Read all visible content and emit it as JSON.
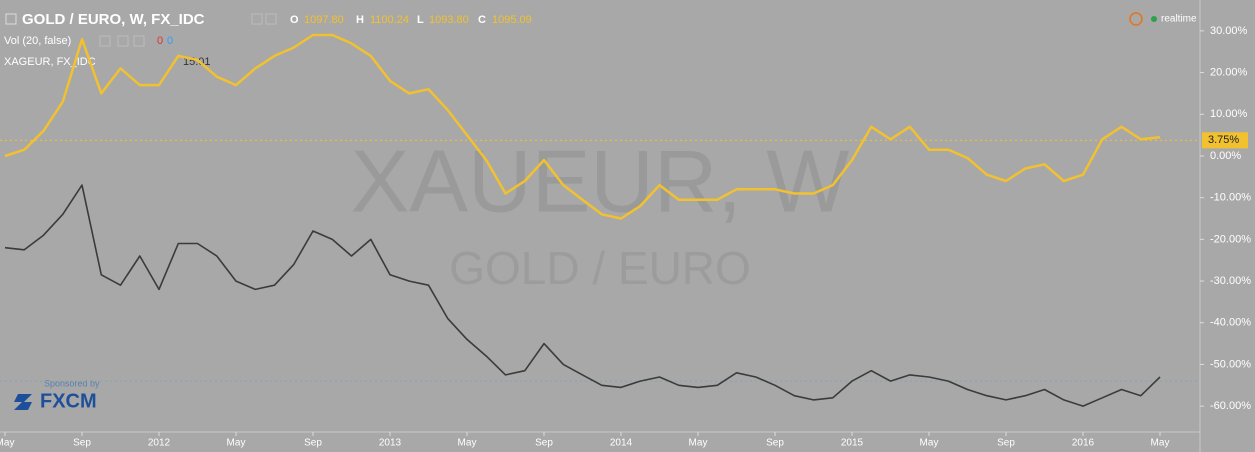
{
  "chart_data": {
    "type": "line",
    "watermark": "XAUEUR, W",
    "watermark_subtitle": "GOLD / EURO",
    "ohlc": {
      "o_label": "O",
      "o": "1097.80",
      "h_label": "H",
      "h": "1100.24",
      "l_label": "L",
      "l": "1093.80",
      "c_label": "C",
      "c": "1095.09"
    },
    "volume": {
      "label": "Vol (20, false)",
      "a": "0",
      "b": "0"
    },
    "compare_value": "15.01",
    "status": "realtime",
    "sponsor": {
      "label": "Sponsored by",
      "name": "FXCM"
    },
    "categories": [
      "May",
      null,
      null,
      null,
      "Sep",
      null,
      null,
      null,
      "2012",
      null,
      null,
      null,
      "May",
      null,
      null,
      null,
      "Sep",
      null,
      null,
      null,
      "2013",
      null,
      null,
      null,
      "May",
      null,
      null,
      null,
      "Sep",
      null,
      null,
      null,
      "2014",
      null,
      null,
      null,
      "May",
      null,
      null,
      null,
      "Sep",
      null,
      null,
      null,
      "2015",
      null,
      null,
      null,
      "May",
      null,
      null,
      null,
      "Sep",
      null,
      null,
      null,
      "2016",
      null,
      null,
      null,
      "May"
    ],
    "series": [
      {
        "name": "GOLD / EURO, W, FX_IDC",
        "color": "#f2c130",
        "values": [
          0,
          1.5,
          6,
          13,
          28,
          15,
          21,
          17,
          17,
          24,
          23,
          19,
          17,
          21,
          24,
          26,
          29,
          29,
          27,
          24,
          18,
          15,
          16,
          11,
          5,
          -1,
          -9,
          -6,
          -1,
          -7,
          -10.5,
          -14,
          -15,
          -12,
          -7,
          -10.5,
          -10.5,
          -10.5,
          -8,
          -8,
          -8,
          -9,
          -9,
          -7,
          -1,
          7,
          4,
          7,
          1.5,
          1.5,
          -0.5,
          -4.5,
          -6,
          -3,
          -2,
          -6,
          -4.5,
          4,
          7,
          4,
          4.5
        ]
      },
      {
        "name": "XAGEUR, FX_IDC",
        "color": "#3b3b3b",
        "values": [
          -22,
          -22.5,
          -19,
          -14,
          -7,
          -28.5,
          -31,
          -24,
          -32,
          -21,
          -21,
          -24,
          -30,
          -32,
          -31,
          -26,
          -18,
          -20,
          -24,
          -20,
          -28.5,
          -30,
          -31,
          -39,
          -44,
          -48,
          -52.5,
          -51.5,
          -45,
          -50,
          -52.5,
          -55,
          -55.5,
          -54,
          -53,
          -55,
          -55.5,
          -55,
          -52,
          -53,
          -55,
          -57.5,
          -58.5,
          -58,
          -54,
          -51.5,
          -54,
          -52.5,
          -53,
          -54,
          -56,
          -57.5,
          -58.5,
          -57.5,
          -56,
          -58.5,
          -60,
          -58,
          -56,
          -57.5,
          -53
        ]
      }
    ],
    "price_lines": [
      {
        "value": 3.75,
        "label": "3.75%",
        "color": "#f2c130"
      },
      {
        "value": -54,
        "color": "#7fa6b0"
      }
    ],
    "ylim": [
      -66.2,
      37.4
    ],
    "yticks": [
      {
        "value": 30,
        "label": "30.00%"
      },
      {
        "value": 20,
        "label": "20.00%"
      },
      {
        "value": 10,
        "label": "10.00%"
      },
      {
        "value": 0,
        "label": "0.00%"
      },
      {
        "value": -10,
        "label": "-10.00%"
      },
      {
        "value": -20,
        "label": "-20.00%"
      },
      {
        "value": -30,
        "label": "-30.00%"
      },
      {
        "value": -40,
        "label": "-40.00%"
      },
      {
        "value": -50,
        "label": "-50.00%"
      },
      {
        "value": -60,
        "label": "-60.00%"
      }
    ]
  }
}
